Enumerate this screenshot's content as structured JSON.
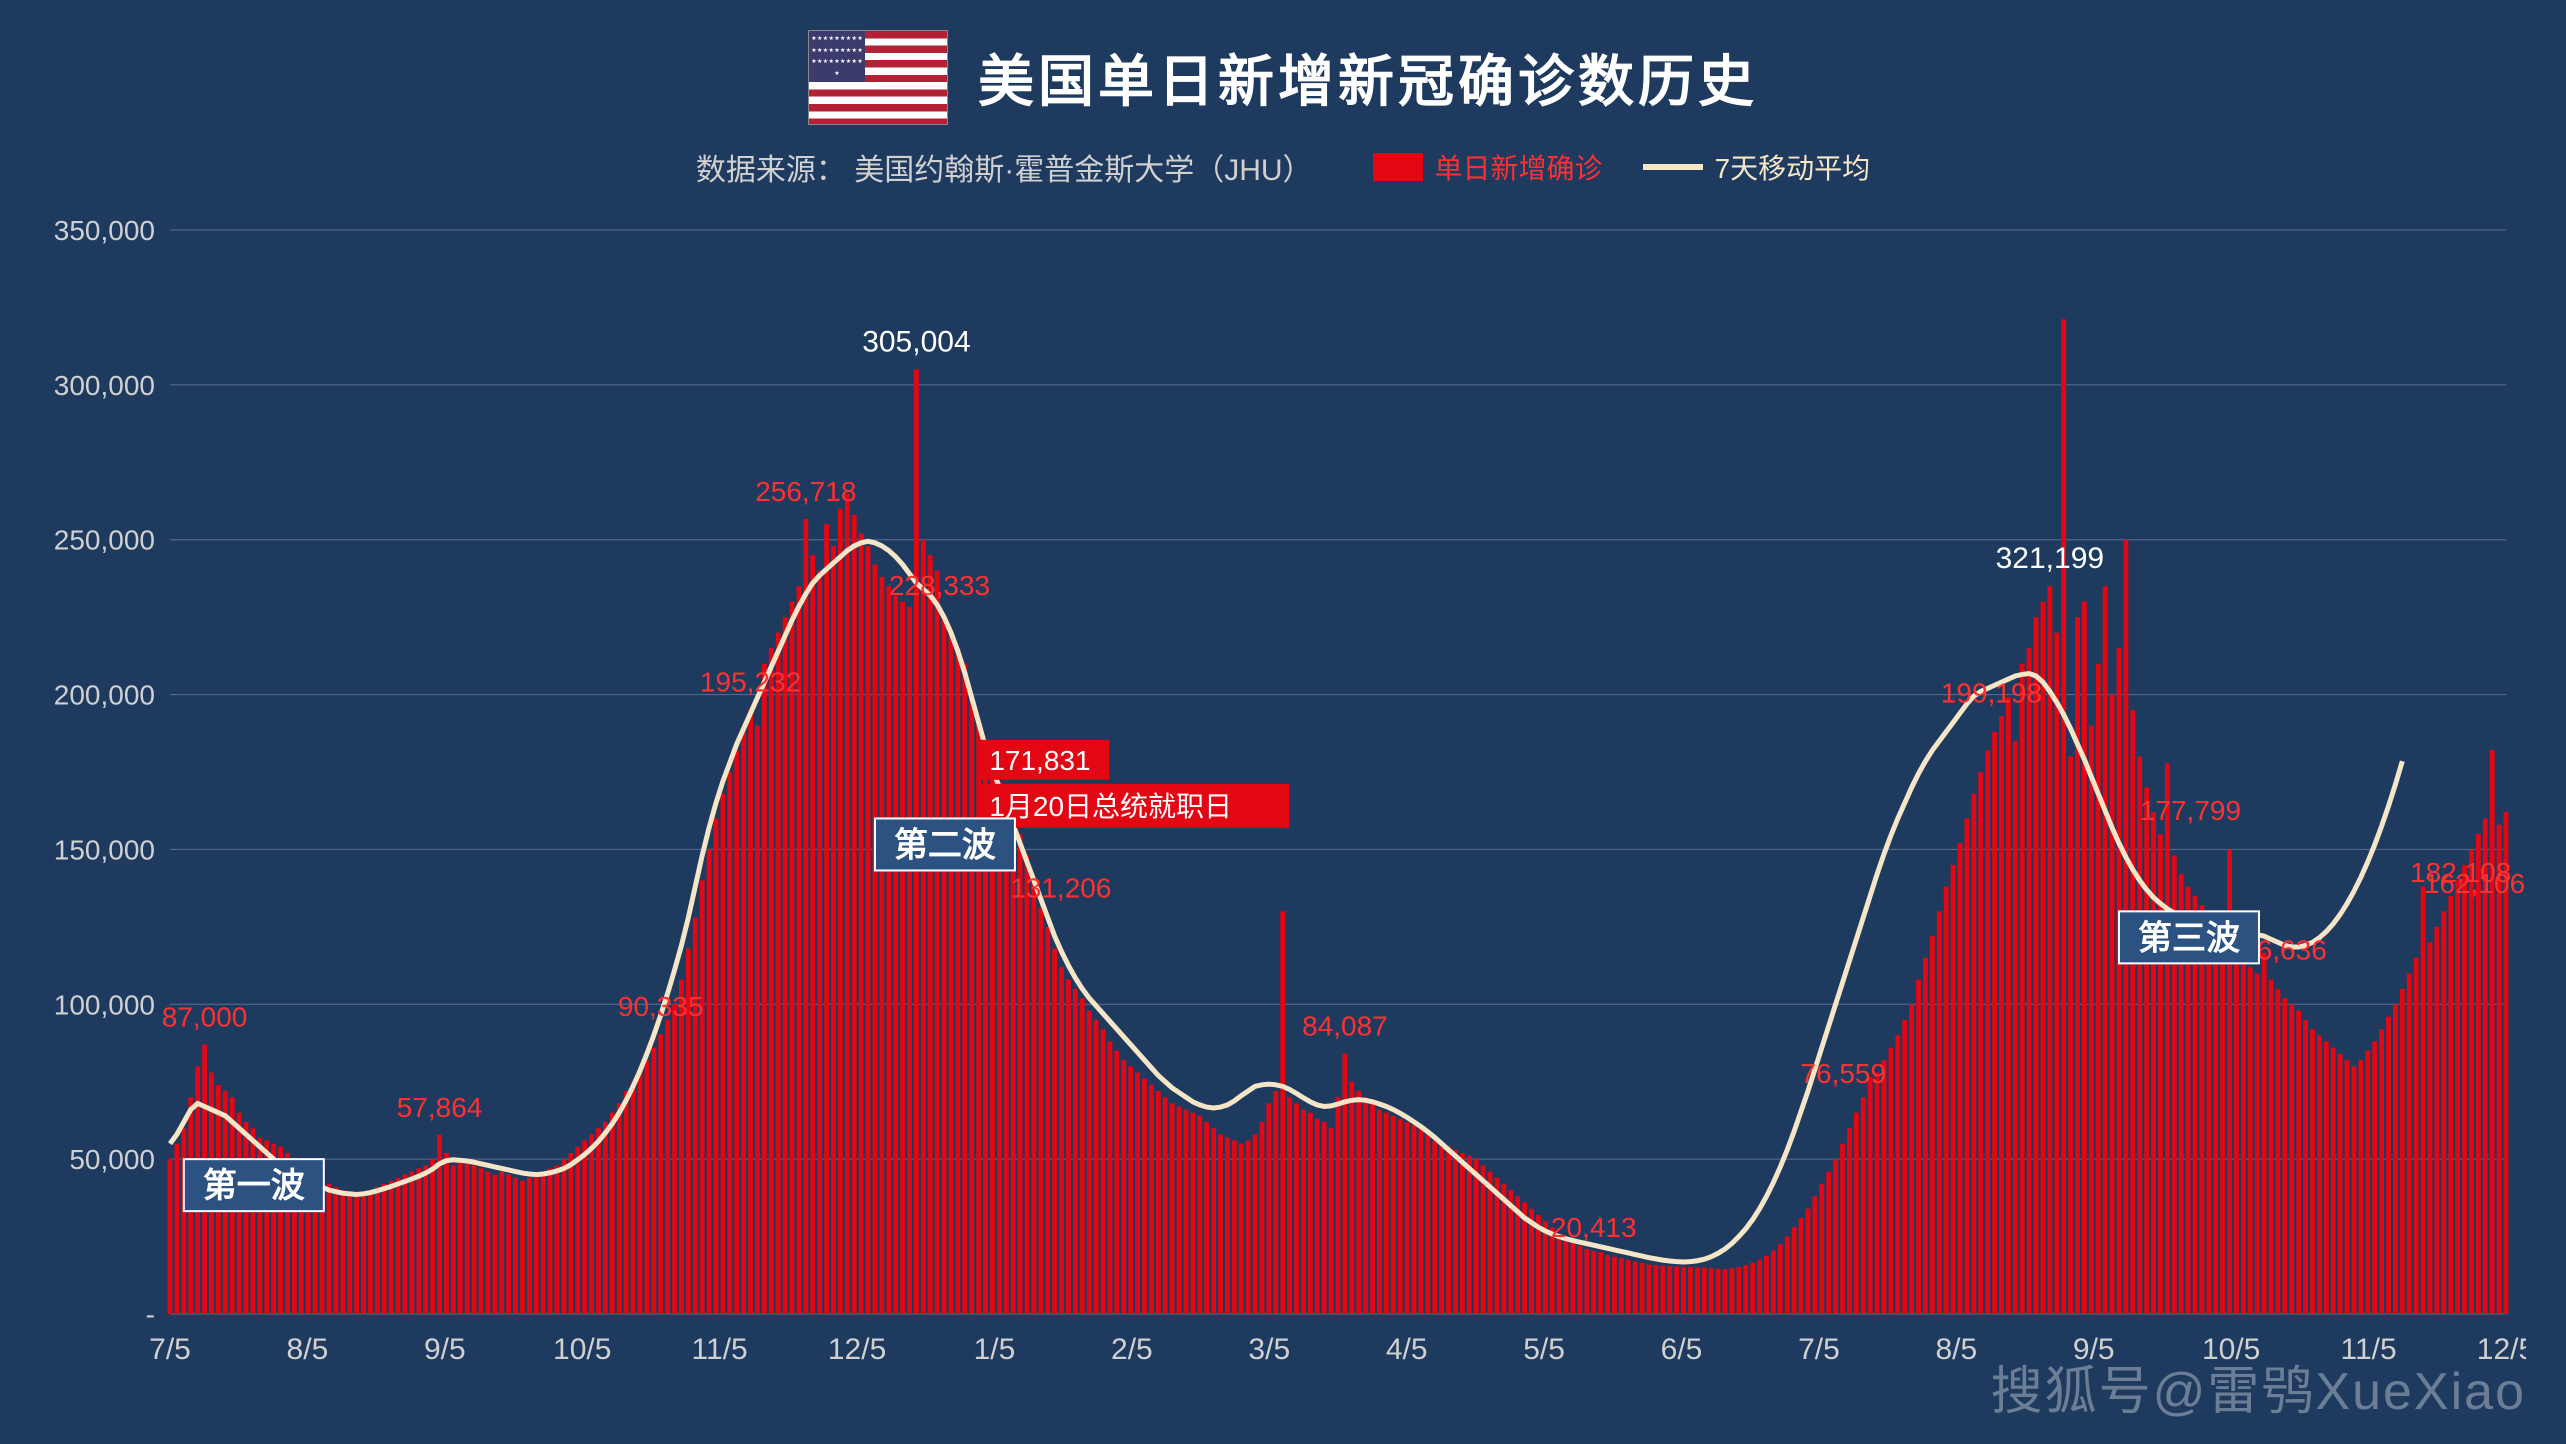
{
  "header": {
    "title": "美国单日新增新冠确诊数历史",
    "subtitle_prefix": "数据来源：",
    "subtitle_source": "美国约翰斯·霍普金斯大学（JHU）"
  },
  "legend": {
    "bars_label": "单日新增确诊",
    "bars_color": "#e30613",
    "line_label": "7天移动平均",
    "line_color": "#f5e6c8"
  },
  "chart": {
    "type": "bar+line",
    "background_color": "#1e3a5f",
    "grid_color": "#5a7090",
    "text_color": "#d0d0d0",
    "bar_color": "#e30613",
    "line_color": "#f5e6c8",
    "line_width": 5,
    "label_color": "#ff3030",
    "peak_label_color": "#ffffff",
    "ylim": [
      0,
      350000
    ],
    "ytick_step": 50000,
    "ytick_labels": [
      "-",
      "50,000",
      "100,000",
      "150,000",
      "200,000",
      "250,000",
      "300,000",
      "350,000"
    ],
    "xticks": [
      "7/5",
      "8/5",
      "9/5",
      "10/5",
      "11/5",
      "12/5",
      "1/5",
      "2/5",
      "3/5",
      "4/5",
      "5/5",
      "6/5",
      "7/5",
      "8/5",
      "9/5",
      "10/5",
      "11/5",
      "12/5"
    ],
    "bars": [
      50000,
      55000,
      60000,
      70000,
      80000,
      87000,
      78000,
      74000,
      72000,
      70000,
      65000,
      62000,
      60000,
      57000,
      56000,
      55000,
      54000,
      52000,
      50000,
      48000,
      46000,
      45000,
      43000,
      42000,
      41000,
      40000,
      39000,
      38000,
      39000,
      40000,
      41000,
      42000,
      43000,
      44000,
      45000,
      46000,
      47000,
      48000,
      50000,
      57864,
      52000,
      48000,
      49000,
      50000,
      48000,
      47000,
      46000,
      45000,
      46000,
      45000,
      44000,
      43000,
      44000,
      45000,
      46000,
      47000,
      48000,
      50000,
      52000,
      54000,
      56000,
      58000,
      60000,
      62000,
      65000,
      68000,
      72000,
      75000,
      78000,
      82000,
      86000,
      90335,
      95000,
      100000,
      108000,
      118000,
      128000,
      140000,
      150000,
      160000,
      168000,
      175000,
      182000,
      188000,
      195232,
      190000,
      210000,
      215000,
      220000,
      225000,
      230000,
      235000,
      256718,
      245000,
      240000,
      255000,
      248000,
      260000,
      265000,
      258000,
      252000,
      248000,
      242000,
      238000,
      235000,
      232000,
      230000,
      228333,
      305004,
      250000,
      245000,
      240000,
      225000,
      220000,
      215000,
      210000,
      200000,
      190000,
      180000,
      175000,
      171831,
      165000,
      160000,
      155000,
      148000,
      140000,
      131206,
      125000,
      118000,
      112000,
      108000,
      105000,
      102000,
      98000,
      95000,
      92000,
      88000,
      85000,
      82000,
      80000,
      78000,
      76000,
      74000,
      72000,
      70000,
      68000,
      67000,
      66000,
      65000,
      64000,
      62000,
      60000,
      58000,
      57000,
      56000,
      55000,
      56000,
      58000,
      62000,
      68000,
      72000,
      130000,
      70000,
      68000,
      66000,
      65000,
      63000,
      62000,
      60000,
      70000,
      84087,
      75000,
      72000,
      70000,
      68000,
      66000,
      65000,
      64000,
      63000,
      62000,
      61000,
      60000,
      58000,
      56000,
      55000,
      54000,
      53000,
      52000,
      51000,
      50000,
      48000,
      46000,
      44000,
      42000,
      40000,
      38000,
      36000,
      34000,
      32000,
      30000,
      28000,
      26000,
      24000,
      23000,
      22000,
      21000,
      20413,
      20000,
      19000,
      18500,
      18000,
      17500,
      17000,
      16500,
      16000,
      15800,
      15600,
      15500,
      15400,
      15300,
      15200,
      15100,
      15000,
      14800,
      14600,
      14500,
      14800,
      15200,
      15800,
      16500,
      17500,
      18800,
      20500,
      22500,
      25000,
      28000,
      31000,
      34000,
      38000,
      42000,
      46000,
      50000,
      55000,
      60000,
      65000,
      70000,
      76559,
      78000,
      82000,
      86000,
      90000,
      95000,
      100000,
      108000,
      115000,
      122000,
      130000,
      138000,
      145000,
      152000,
      160000,
      168000,
      175000,
      182000,
      188000,
      193000,
      199198,
      185000,
      210000,
      215000,
      225000,
      230000,
      235000,
      220000,
      321199,
      180000,
      225000,
      230000,
      190000,
      210000,
      235000,
      200000,
      215000,
      250000,
      195000,
      180000,
      170000,
      162000,
      155000,
      177799,
      148000,
      142000,
      138000,
      135000,
      132000,
      128000,
      125000,
      122000,
      150000,
      118000,
      115000,
      112000,
      110000,
      116636,
      108000,
      105000,
      102000,
      100000,
      98000,
      95000,
      92000,
      90000,
      88000,
      86000,
      84000,
      82000,
      80000,
      82000,
      85000,
      88000,
      92000,
      96000,
      100000,
      105000,
      110000,
      115000,
      138000,
      120000,
      125000,
      130000,
      135000,
      140000,
      145000,
      150000,
      155000,
      160000,
      182108,
      158000,
      162106
    ],
    "moving_avg": [
      55000,
      58000,
      62000,
      66000,
      68000,
      67000,
      66000,
      65000,
      64000,
      62000,
      60000,
      58000,
      56000,
      54000,
      52000,
      50000,
      48000,
      46000,
      45000,
      44000,
      43000,
      42000,
      41000,
      40000,
      39500,
      39000,
      38800,
      38600,
      38800,
      39200,
      39800,
      40500,
      41200,
      42000,
      42800,
      43600,
      44500,
      45500,
      46800,
      48500,
      49500,
      49800,
      49600,
      49400,
      49000,
      48500,
      48000,
      47500,
      47000,
      46500,
      46000,
      45500,
      45200,
      45000,
      45200,
      45600,
      46200,
      47000,
      48200,
      49800,
      51500,
      53500,
      55800,
      58500,
      61500,
      65000,
      69000,
      73500,
      78500,
      84000,
      90000,
      96500,
      103500,
      111000,
      119000,
      128000,
      138000,
      148000,
      157000,
      165000,
      172000,
      178000,
      184000,
      189000,
      194000,
      199000,
      204000,
      209000,
      214000,
      219000,
      224000,
      228500,
      232500,
      236000,
      238500,
      240500,
      242500,
      244500,
      246500,
      248000,
      249000,
      249500,
      249000,
      248000,
      246500,
      244500,
      242000,
      239000,
      236000,
      234000,
      232000,
      229000,
      225000,
      220000,
      214000,
      207000,
      199000,
      191000,
      183000,
      176000,
      170000,
      164000,
      158000,
      152000,
      146000,
      140000,
      134000,
      128000,
      122000,
      117000,
      112500,
      108500,
      105000,
      102000,
      99500,
      97000,
      94500,
      92000,
      89500,
      87000,
      84500,
      82000,
      79500,
      77000,
      75000,
      73000,
      71500,
      70000,
      68500,
      67500,
      66800,
      66500,
      66800,
      67500,
      68800,
      70500,
      72000,
      73500,
      74000,
      74200,
      74000,
      73500,
      72500,
      71200,
      69800,
      68500,
      67500,
      67000,
      67200,
      67800,
      68500,
      69000,
      69200,
      69000,
      68500,
      67800,
      67000,
      66000,
      64800,
      63500,
      62000,
      60500,
      58800,
      57000,
      55000,
      53000,
      51000,
      49000,
      47000,
      45000,
      43000,
      41000,
      39000,
      37000,
      35000,
      33000,
      31000,
      29500,
      28000,
      26800,
      25800,
      25000,
      24300,
      23700,
      23200,
      22700,
      22200,
      21700,
      21200,
      20700,
      20200,
      19700,
      19200,
      18700,
      18200,
      17800,
      17400,
      17100,
      16900,
      16800,
      16900,
      17200,
      17700,
      18500,
      19600,
      21000,
      22800,
      25000,
      27500,
      30500,
      34000,
      38000,
      42500,
      47500,
      53000,
      59000,
      65500,
      72000,
      79000,
      86000,
      93000,
      100000,
      107000,
      114000,
      121000,
      128000,
      135000,
      142000,
      148500,
      154500,
      160000,
      165000,
      170000,
      174500,
      178500,
      182000,
      185000,
      188000,
      191000,
      194000,
      197000,
      199500,
      201000,
      202000,
      203000,
      204000,
      205000,
      206000,
      206500,
      206800,
      206000,
      204000,
      201000,
      197500,
      193500,
      189000,
      184000,
      179000,
      173500,
      168000,
      162500,
      157000,
      152000,
      147500,
      143500,
      140000,
      137000,
      134500,
      132500,
      130800,
      129500,
      128500,
      127700,
      127000,
      126500,
      126000,
      125500,
      125000,
      124500,
      124000,
      123500,
      123000,
      122500,
      122000,
      121000,
      120000,
      119000,
      118500,
      118500,
      119000,
      120000,
      121500,
      123500,
      126000,
      129000,
      132500,
      136500,
      141000,
      146000,
      151500,
      157500,
      164000,
      171000,
      178500
    ],
    "annotations": [
      {
        "idx": 5,
        "value": "87,000",
        "yoffset": -18
      },
      {
        "idx": 39,
        "value": "57,864",
        "yoffset": -18
      },
      {
        "idx": 71,
        "value": "90,335",
        "yoffset": -18
      },
      {
        "idx": 84,
        "value": "195,232",
        "yoffset": -18
      },
      {
        "idx": 92,
        "value": "256,718",
        "yoffset": -18
      },
      {
        "idx": 107,
        "value": "228,333",
        "yoffset": -12,
        "xoffset": 30
      },
      {
        "idx": 126,
        "value": "131,206",
        "yoffset": -10,
        "xoffset": 20
      },
      {
        "idx": 170,
        "value": "84,087",
        "yoffset": -18
      },
      {
        "idx": 206,
        "value": "20,413",
        "yoffset": -14
      },
      {
        "idx": 245,
        "value": "76,559",
        "yoffset": -14,
        "xoffset": -20
      },
      {
        "idx": 265,
        "value": "199,198",
        "yoffset": -14,
        "xoffset": -10
      },
      {
        "idx": 288,
        "value": "177,799",
        "yoffset": -14,
        "xoffset": 30
      },
      {
        "idx": 302,
        "value": "116,636",
        "yoffset": -14,
        "xoffset": 20
      },
      {
        "idx": 330,
        "value": "182,108",
        "yoffset": -14,
        "xoffset": 10
      },
      {
        "idx": 332,
        "value": "162,106",
        "yoffset": 28,
        "xoffset": 10
      }
    ],
    "peak_annotations": [
      {
        "idx": 108,
        "value": "305,004"
      },
      {
        "idx": 272,
        "value": "321,199"
      }
    ],
    "callouts": [
      {
        "idx": 120,
        "line1": "171,831",
        "line2": "1月20日总统就职日"
      }
    ],
    "wave_boxes": [
      {
        "label": "第一波",
        "idx": 2,
        "y": 50000
      },
      {
        "label": "第二波",
        "idx": 102,
        "y": 160000
      },
      {
        "label": "第三波",
        "idx": 282,
        "y": 130000
      }
    ]
  },
  "watermark": "搜狐号@雷鸮XueXiao"
}
